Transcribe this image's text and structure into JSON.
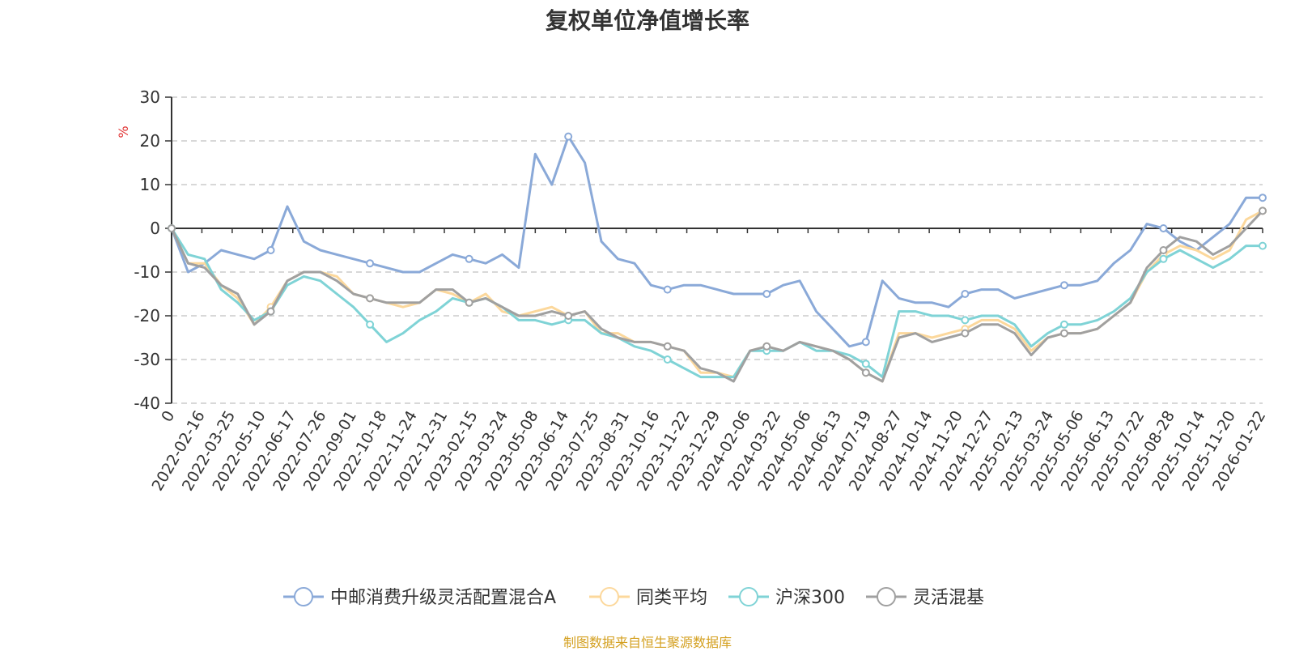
{
  "chart_data": {
    "type": "line",
    "title": "复权单位净值增长率",
    "ylabel": "%",
    "xlabel": "",
    "ylim": [
      -40,
      30
    ],
    "yticks": [
      30,
      20,
      10,
      0,
      -10,
      -20,
      -30,
      -40
    ],
    "grid": true,
    "legend_position": "bottom",
    "x_tick_labels": [
      "0",
      "2022-02-16",
      "2022-03-25",
      "2022-05-10",
      "2022-06-17",
      "2022-07-26",
      "2022-09-01",
      "2022-10-18",
      "2022-11-24",
      "2022-12-31",
      "2023-02-15",
      "2023-03-24",
      "2023-05-08",
      "2023-06-14",
      "2023-07-25",
      "2023-08-31",
      "2023-10-16",
      "2023-11-22",
      "2023-12-29",
      "2024-02-06",
      "2024-03-22",
      "2024-05-06",
      "2024-06-13",
      "2024-07-19",
      "2024-08-27",
      "2024-10-14",
      "2024-11-20",
      "2024-12-27",
      "2025-02-13",
      "2025-03-24",
      "2025-05-06",
      "2025-06-13",
      "2025-07-22",
      "2025-08-28",
      "2025-10-14",
      "2025-11-20",
      "2026-01-22"
    ],
    "series": [
      {
        "name": "中邮消费升级灵活配置混合A",
        "color": "#8aa9d8",
        "values": [
          0,
          -10,
          -8,
          -5,
          -6,
          -7,
          -5,
          5,
          -3,
          -5,
          -6,
          -7,
          -8,
          -9,
          -10,
          -10,
          -8,
          -6,
          -7,
          -8,
          -6,
          -9,
          17,
          10,
          21,
          15,
          -3,
          -7,
          -8,
          -13,
          -14,
          -13,
          -13,
          -14,
          -15,
          -15,
          -15,
          -13,
          -12,
          -19,
          -23,
          -27,
          -26,
          -12,
          -16,
          -17,
          -17,
          -18,
          -15,
          -14,
          -14,
          -16,
          -15,
          -14,
          -13,
          -13,
          -12,
          -8,
          -5,
          1,
          0,
          -3,
          -5,
          -2,
          1,
          7,
          7
        ]
      },
      {
        "name": "同类平均",
        "color": "#fcd89c",
        "values": [
          0,
          -8,
          -8,
          -13,
          -16,
          -22,
          -18,
          -12,
          -10,
          -10,
          -11,
          -15,
          -16,
          -17,
          -18,
          -17,
          -14,
          -15,
          -17,
          -15,
          -19,
          -20,
          -19,
          -18,
          -20,
          -19,
          -24,
          -24,
          -26,
          -26,
          -27,
          -28,
          -33,
          -33,
          -34,
          -28,
          -27,
          -28,
          -26,
          -27,
          -28,
          -30,
          -33,
          -35,
          -24,
          -24,
          -25,
          -24,
          -23,
          -21,
          -21,
          -23,
          -28,
          -25,
          -24,
          -24,
          -23,
          -20,
          -17,
          -10,
          -6,
          -4,
          -5,
          -7,
          -5,
          2,
          4
        ]
      },
      {
        "name": "沪深300",
        "color": "#7fd3d6",
        "values": [
          0,
          -6,
          -7,
          -14,
          -17,
          -21,
          -19,
          -13,
          -11,
          -12,
          -15,
          -18,
          -22,
          -26,
          -24,
          -21,
          -19,
          -16,
          -17,
          -16,
          -18,
          -21,
          -21,
          -22,
          -21,
          -21,
          -24,
          -25,
          -27,
          -28,
          -30,
          -32,
          -34,
          -34,
          -34,
          -28,
          -28,
          -28,
          -26,
          -28,
          -28,
          -29,
          -31,
          -34,
          -19,
          -19,
          -20,
          -20,
          -21,
          -20,
          -20,
          -22,
          -27,
          -24,
          -22,
          -22,
          -21,
          -19,
          -16,
          -10,
          -7,
          -5,
          -7,
          -9,
          -7,
          -4,
          -4
        ]
      },
      {
        "name": "灵活混基",
        "color": "#a0a0a0",
        "values": [
          0,
          -8,
          -9,
          -13,
          -15,
          -22,
          -19,
          -12,
          -10,
          -10,
          -12,
          -15,
          -16,
          -17,
          -17,
          -17,
          -14,
          -14,
          -17,
          -16,
          -18,
          -20,
          -20,
          -19,
          -20,
          -19,
          -23,
          -25,
          -26,
          -26,
          -27,
          -28,
          -32,
          -33,
          -35,
          -28,
          -27,
          -28,
          -26,
          -27,
          -28,
          -30,
          -33,
          -35,
          -25,
          -24,
          -26,
          -25,
          -24,
          -22,
          -22,
          -24,
          -29,
          -25,
          -24,
          -24,
          -23,
          -20,
          -17,
          -9,
          -5,
          -2,
          -3,
          -6,
          -4,
          0,
          4
        ]
      }
    ]
  },
  "footer": {
    "source": "制图数据来自恒生聚源数据库"
  }
}
